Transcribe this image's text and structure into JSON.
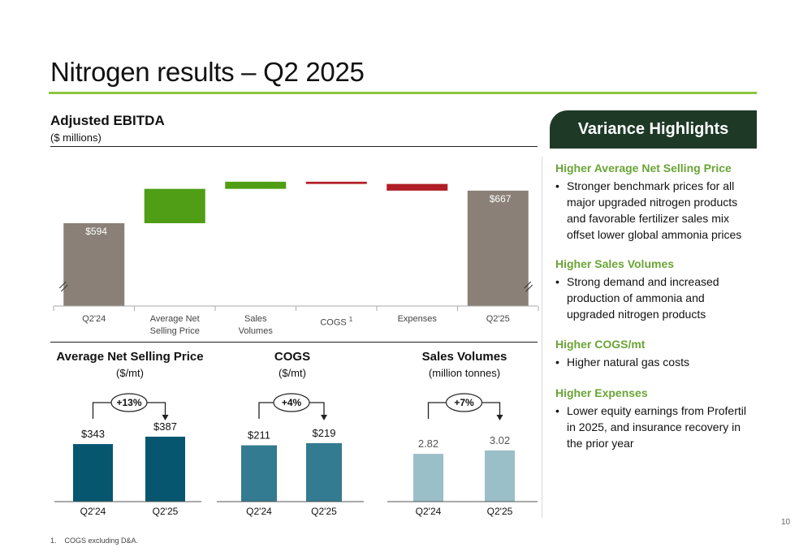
{
  "page": {
    "title": "Nitrogen results – Q2 2025",
    "page_number": "10",
    "footnote": "1.    COGS excluding D&A."
  },
  "ebitda": {
    "title": "Adjusted EBITDA",
    "subtitle": "($ millions)"
  },
  "variance": {
    "header": "Variance Highlights",
    "items": [
      {
        "heading": "Higher Average Net Selling Price",
        "bullets": [
          "Stronger benchmark prices for all major upgraded nitrogen products and favorable fertilizer sales mix offset lower global ammonia prices"
        ]
      },
      {
        "heading": "Higher Sales Volumes",
        "bullets": [
          "Strong demand and increased production of ammonia and upgraded nitrogen products"
        ]
      },
      {
        "heading": "Higher COGS/mt",
        "bullets": [
          "Higher natural gas costs"
        ]
      },
      {
        "heading": "Higher Expenses",
        "bullets": [
          "Lower equity earnings from Profertil in 2025, and insurance recovery in the prior year"
        ]
      }
    ],
    "bullet_char": "•"
  },
  "chart_data": [
    {
      "type": "waterfall",
      "title": "Adjusted EBITDA",
      "subtitle": "($ millions)",
      "categories": [
        "Q2'24",
        "Average Net Selling Price",
        "Sales Volumes",
        "COGS",
        "Expenses",
        "Q2'25"
      ],
      "category_labels": [
        [
          "Q2'24"
        ],
        [
          "Average Net",
          "Selling Price"
        ],
        [
          "Sales",
          "Volumes"
        ],
        [
          "COGS"
        ],
        [
          "Expenses"
        ],
        [
          "Q2'25"
        ]
      ],
      "category_superscripts": [
        "",
        "",
        "",
        "1",
        "",
        ""
      ],
      "start_value": 594,
      "end_value": 667,
      "start_label": "$594",
      "end_label": "$667",
      "changes": [
        {
          "category": "Average Net Selling Price",
          "value": 77,
          "color": "#4f9e15"
        },
        {
          "category": "Sales Volumes",
          "value": 16,
          "color": "#4f9e15"
        },
        {
          "category": "COGS",
          "value": -5,
          "color": "#b11e26"
        },
        {
          "category": "Expenses",
          "value": -15,
          "color": "#b11e26"
        }
      ],
      "total_color": "#8b8077",
      "axis_break": true
    },
    {
      "type": "bar",
      "title": "Average Net Selling Price",
      "subtitle": "($/mt)",
      "categories": [
        "Q2'24",
        "Q2'25"
      ],
      "values": [
        343,
        387
      ],
      "labels": [
        "$343",
        "$387"
      ],
      "change_label": "+13%",
      "color": "#06566f"
    },
    {
      "type": "bar",
      "title": "COGS",
      "subtitle": "($/mt)",
      "categories": [
        "Q2'24",
        "Q2'25"
      ],
      "values": [
        211,
        219
      ],
      "labels": [
        "$211",
        "$219"
      ],
      "change_label": "+4%",
      "color": "#337b90"
    },
    {
      "type": "bar",
      "title": "Sales Volumes",
      "subtitle": "(million tonnes)",
      "categories": [
        "Q2'24",
        "Q2'25"
      ],
      "values": [
        2.82,
        3.02
      ],
      "labels": [
        "2.82",
        "3.02"
      ],
      "change_label": "+7%",
      "color": "#9abfc8"
    }
  ]
}
